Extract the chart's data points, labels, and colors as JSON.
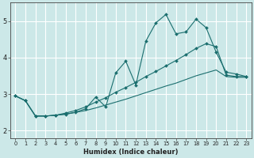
{
  "xlabel": "Humidex (Indice chaleur)",
  "bg_color": "#cce8e8",
  "grid_color": "#ffffff",
  "line_color": "#1a6e6e",
  "xlim": [
    -0.5,
    23.5
  ],
  "ylim": [
    1.8,
    5.5
  ],
  "xticks": [
    0,
    1,
    2,
    3,
    4,
    5,
    6,
    7,
    8,
    9,
    10,
    11,
    12,
    13,
    14,
    15,
    16,
    17,
    18,
    19,
    20,
    21,
    22,
    23
  ],
  "yticks": [
    2,
    3,
    4,
    5
  ],
  "line1_x": [
    0,
    1,
    2,
    3,
    4,
    5,
    6,
    7,
    8,
    9,
    10,
    11,
    12,
    13,
    14,
    15,
    16,
    17,
    18,
    19,
    20,
    21,
    22,
    23
  ],
  "line1_y": [
    2.95,
    2.82,
    2.4,
    2.4,
    2.42,
    2.45,
    2.5,
    2.6,
    2.92,
    2.65,
    3.58,
    3.9,
    3.25,
    4.45,
    4.95,
    5.18,
    4.65,
    4.7,
    5.05,
    4.82,
    4.15,
    3.6,
    3.55,
    3.48
  ],
  "line2_x": [
    0,
    1,
    2,
    3,
    4,
    5,
    6,
    7,
    8,
    9,
    10,
    11,
    12,
    13,
    14,
    15,
    16,
    17,
    18,
    19,
    20,
    21,
    22,
    23
  ],
  "line2_y": [
    2.95,
    2.82,
    2.4,
    2.4,
    2.42,
    2.48,
    2.55,
    2.65,
    2.78,
    2.9,
    3.05,
    3.18,
    3.32,
    3.48,
    3.62,
    3.77,
    3.92,
    4.08,
    4.25,
    4.38,
    4.3,
    3.52,
    3.48,
    3.48
  ],
  "line3_x": [
    0,
    1,
    2,
    3,
    4,
    5,
    6,
    7,
    8,
    9,
    10,
    11,
    12,
    13,
    14,
    15,
    16,
    17,
    18,
    19,
    20,
    21,
    22,
    23
  ],
  "line3_y": [
    2.95,
    2.82,
    2.4,
    2.4,
    2.42,
    2.45,
    2.5,
    2.55,
    2.62,
    2.7,
    2.78,
    2.86,
    2.95,
    3.04,
    3.13,
    3.22,
    3.3,
    3.4,
    3.5,
    3.58,
    3.66,
    3.48,
    3.46,
    3.46
  ]
}
